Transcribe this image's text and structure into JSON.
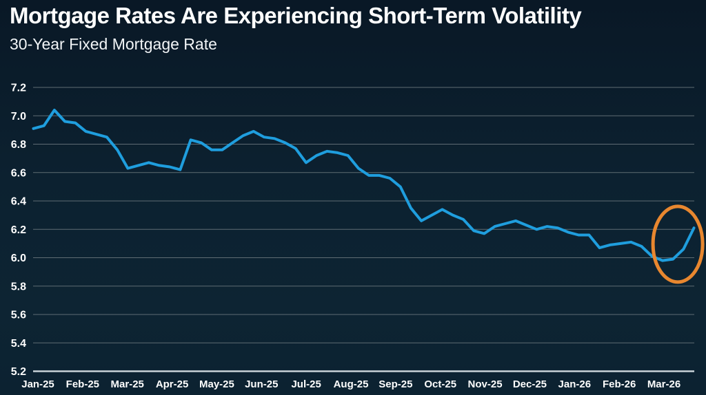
{
  "header": {
    "title": "Mortgage Rates Are Experiencing Short-Term Volatility",
    "subtitle": "30-Year Fixed Mortgage Rate"
  },
  "chart_data": {
    "type": "line",
    "title": "Mortgage Rates Are Experiencing Short-Term Volatility",
    "subtitle": "30-Year Fixed Mortgage Rate",
    "xlabel": "",
    "ylabel": "",
    "ylim": [
      5.2,
      7.2
    ],
    "yticks": [
      "7.2",
      "7.0",
      "6.8",
      "6.6",
      "6.4",
      "6.2",
      "6.0",
      "5.8",
      "5.6",
      "5.4",
      "5.2"
    ],
    "ytick_values": [
      7.2,
      7.0,
      6.8,
      6.6,
      6.4,
      6.2,
      6.0,
      5.8,
      5.6,
      5.4,
      5.2
    ],
    "grid": "horizontal",
    "legend": "none",
    "categories": [
      "Jan-25",
      "Feb-25",
      "Mar-25",
      "Apr-25",
      "May-25",
      "Jun-25",
      "Jul-25",
      "Aug-25",
      "Sep-25",
      "Oct-25",
      "Nov-25",
      "Dec-25",
      "Jan-26",
      "Feb-26",
      "Mar-26"
    ],
    "series": [
      {
        "name": "30-Year Fixed Mortgage Rate",
        "cadence": "weekly",
        "values": [
          6.91,
          6.93,
          7.04,
          6.96,
          6.95,
          6.89,
          6.87,
          6.85,
          6.76,
          6.63,
          6.65,
          6.67,
          6.65,
          6.64,
          6.62,
          6.83,
          6.81,
          6.76,
          6.76,
          6.81,
          6.86,
          6.89,
          6.85,
          6.84,
          6.81,
          6.77,
          6.67,
          6.72,
          6.75,
          6.74,
          6.72,
          6.63,
          6.58,
          6.58,
          6.56,
          6.5,
          6.35,
          6.26,
          6.3,
          6.34,
          6.3,
          6.27,
          6.19,
          6.17,
          6.22,
          6.24,
          6.26,
          6.23,
          6.2,
          6.22,
          6.21,
          6.18,
          6.16,
          6.16,
          6.07,
          6.09,
          6.1,
          6.11,
          6.08,
          6.01,
          5.98,
          5.99,
          6.06,
          6.21
        ]
      }
    ],
    "annotation": {
      "type": "ellipse-highlight",
      "meaning": "circle around recent short-term volatility dip and spike",
      "covers_last_n_points": 5
    },
    "colors": {
      "line": "#1F9EDE",
      "annotation": "#E8872F",
      "grid": "#6E7A80",
      "axis_line": "#C9D2D8",
      "text": "#FFFFFF",
      "background": "#0C2130"
    }
  }
}
